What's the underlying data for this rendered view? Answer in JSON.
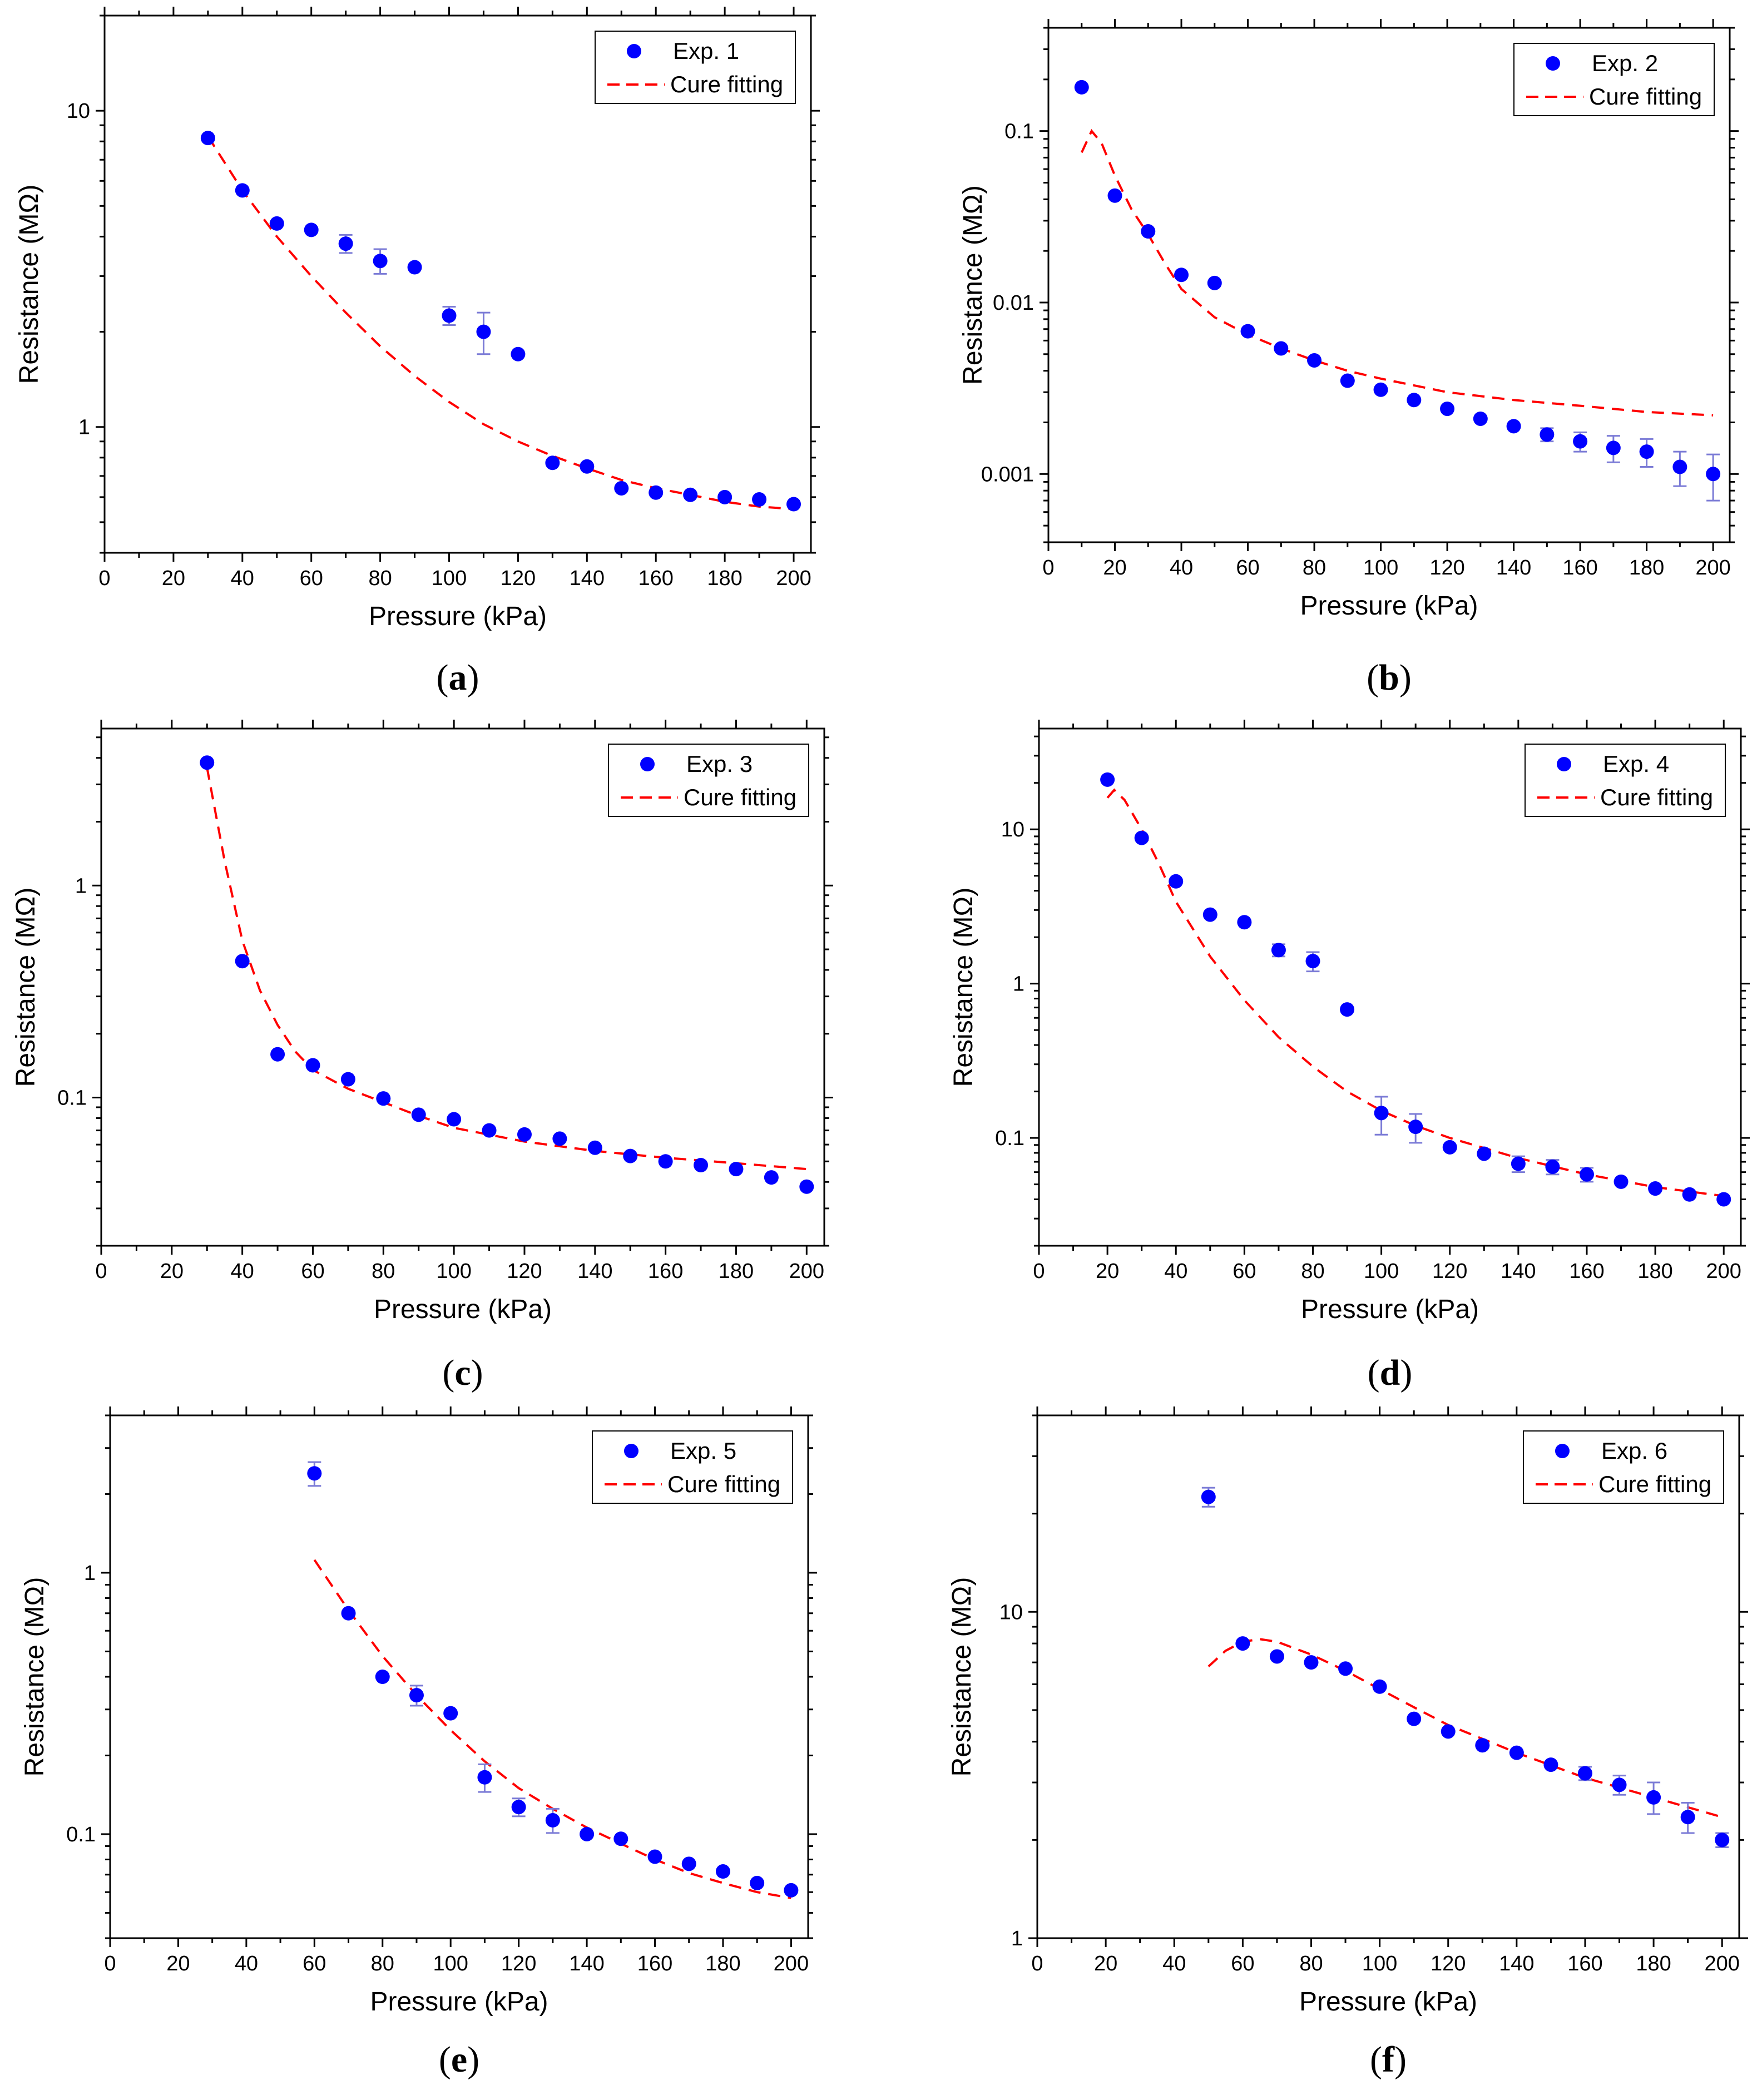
{
  "figure": {
    "panel_label_pattern": "(#)",
    "point_color": "#0000ff",
    "errorbar_color": "#7b7bd6",
    "fit_color": "#ff0000"
  },
  "chart_data": [
    {
      "id": "a",
      "panel_letter": "a",
      "type": "scatter",
      "xlabel": "Pressure (kPa)",
      "ylabel": "Resistance (MΩ)",
      "xlim": [
        0,
        205
      ],
      "xticks": [
        0,
        20,
        40,
        60,
        80,
        100,
        120,
        140,
        160,
        180,
        200
      ],
      "yscale": "log",
      "ylim": [
        0.4,
        20
      ],
      "yticks": [
        1,
        10
      ],
      "ytick_labels": [
        "1",
        "10"
      ],
      "legend": {
        "points": "Exp. 1",
        "fit": "Cure fitting",
        "position": "top-right"
      },
      "points": {
        "x": [
          30,
          40,
          50,
          60,
          70,
          80,
          90,
          100,
          110,
          120,
          130,
          140,
          150,
          160,
          170,
          180,
          190,
          200
        ],
        "y": [
          8.2,
          5.6,
          4.4,
          4.2,
          3.8,
          3.35,
          3.2,
          2.25,
          2.0,
          1.7,
          0.77,
          0.75,
          0.64,
          0.62,
          0.61,
          0.6,
          0.59,
          0.57
        ],
        "err": [
          0,
          0,
          0,
          0,
          0.25,
          0.3,
          0,
          0.15,
          0.3,
          0,
          0,
          0,
          0,
          0,
          0,
          0,
          0,
          0
        ]
      },
      "fit": {
        "x": [
          30,
          40,
          50,
          60,
          70,
          80,
          90,
          100,
          110,
          120,
          130,
          140,
          150,
          160,
          170,
          180,
          190,
          200
        ],
        "y": [
          8.3,
          5.6,
          4.0,
          3.0,
          2.3,
          1.8,
          1.45,
          1.2,
          1.02,
          0.9,
          0.81,
          0.74,
          0.68,
          0.64,
          0.61,
          0.58,
          0.56,
          0.55
        ]
      }
    },
    {
      "id": "b",
      "panel_letter": "b",
      "type": "scatter",
      "xlabel": "Pressure (kPa)",
      "ylabel": "Resistance (MΩ)",
      "xlim": [
        0,
        205
      ],
      "xticks": [
        0,
        20,
        40,
        60,
        80,
        100,
        120,
        140,
        160,
        180,
        200
      ],
      "yscale": "log",
      "ylim": [
        0.0004,
        0.4
      ],
      "yticks": [
        0.001,
        0.01,
        0.1
      ],
      "ytick_labels": [
        "0.001",
        "0.01",
        "0.1"
      ],
      "legend": {
        "points": "Exp. 2",
        "fit": "Cure fitting",
        "position": "top-right"
      },
      "points": {
        "x": [
          10,
          20,
          30,
          40,
          50,
          60,
          70,
          80,
          90,
          100,
          110,
          120,
          130,
          140,
          150,
          160,
          170,
          180,
          190,
          200
        ],
        "y": [
          0.18,
          0.042,
          0.026,
          0.0145,
          0.013,
          0.0068,
          0.0054,
          0.0046,
          0.0035,
          0.0031,
          0.0027,
          0.0024,
          0.0021,
          0.0019,
          0.0017,
          0.00155,
          0.00142,
          0.00135,
          0.0011,
          0.001
        ],
        "err": [
          0,
          0,
          0,
          0,
          0,
          0,
          0,
          0,
          0,
          0,
          0,
          0,
          0,
          0,
          0.00015,
          0.0002,
          0.00025,
          0.00025,
          0.00025,
          0.0003
        ]
      },
      "fit": {
        "x": [
          10,
          13,
          16,
          20,
          25,
          30,
          35,
          40,
          50,
          60,
          70,
          80,
          90,
          100,
          120,
          140,
          160,
          180,
          200
        ],
        "y": [
          0.075,
          0.1,
          0.085,
          0.055,
          0.035,
          0.025,
          0.017,
          0.012,
          0.0082,
          0.0065,
          0.0054,
          0.0046,
          0.004,
          0.0036,
          0.003,
          0.0027,
          0.0025,
          0.0023,
          0.0022
        ]
      }
    },
    {
      "id": "c",
      "panel_letter": "c",
      "type": "scatter",
      "xlabel": "Pressure (kPa)",
      "ylabel": "Resistance (MΩ)",
      "xlim": [
        0,
        205
      ],
      "xticks": [
        0,
        20,
        40,
        60,
        80,
        100,
        120,
        140,
        160,
        180,
        200
      ],
      "yscale": "log",
      "ylim": [
        0.02,
        5.5
      ],
      "yticks": [
        0.1,
        1
      ],
      "ytick_labels": [
        "0.1",
        "1"
      ],
      "legend": {
        "points": "Exp. 3",
        "fit": "Cure fitting",
        "position": "top-right"
      },
      "points": {
        "x": [
          30,
          40,
          50,
          60,
          70,
          80,
          90,
          100,
          110,
          120,
          130,
          140,
          150,
          160,
          170,
          180,
          190,
          200
        ],
        "y": [
          3.8,
          0.44,
          0.16,
          0.142,
          0.122,
          0.099,
          0.083,
          0.079,
          0.07,
          0.067,
          0.064,
          0.058,
          0.053,
          0.05,
          0.048,
          0.046,
          0.042,
          0.038
        ],
        "err": [
          0,
          0,
          0,
          0,
          0,
          0,
          0,
          0,
          0,
          0,
          0,
          0,
          0,
          0,
          0,
          0,
          0,
          0
        ]
      },
      "fit": {
        "x": [
          30,
          35,
          40,
          45,
          50,
          55,
          60,
          70,
          80,
          90,
          100,
          120,
          140,
          160,
          180,
          200
        ],
        "y": [
          3.6,
          1.3,
          0.55,
          0.32,
          0.22,
          0.165,
          0.135,
          0.11,
          0.095,
          0.082,
          0.072,
          0.062,
          0.056,
          0.052,
          0.049,
          0.046
        ]
      }
    },
    {
      "id": "d",
      "panel_letter": "d",
      "type": "scatter",
      "xlabel": "Pressure (kPa)",
      "ylabel": "Resistance (MΩ)",
      "xlim": [
        0,
        205
      ],
      "xticks": [
        0,
        20,
        40,
        60,
        80,
        100,
        120,
        140,
        160,
        180,
        200
      ],
      "yscale": "log",
      "ylim": [
        0.02,
        45
      ],
      "yticks": [
        0.1,
        1,
        10
      ],
      "ytick_labels": [
        "0.1",
        "1",
        "10"
      ],
      "legend": {
        "points": "Exp. 4",
        "fit": "Cure fitting",
        "position": "top-right"
      },
      "points": {
        "x": [
          20,
          30,
          40,
          50,
          60,
          70,
          80,
          90,
          100,
          110,
          120,
          130,
          140,
          150,
          160,
          170,
          180,
          190,
          200
        ],
        "y": [
          21,
          8.8,
          4.6,
          2.8,
          2.5,
          1.65,
          1.4,
          0.68,
          0.145,
          0.118,
          0.087,
          0.079,
          0.068,
          0.065,
          0.058,
          0.052,
          0.047,
          0.043,
          0.04
        ],
        "err": [
          0,
          0,
          0,
          0,
          0,
          0.15,
          0.2,
          0,
          0.04,
          0.025,
          0,
          0,
          0.008,
          0.007,
          0.006,
          0,
          0,
          0,
          0
        ]
      },
      "fit": {
        "x": [
          20,
          22,
          25,
          30,
          35,
          40,
          50,
          60,
          70,
          80,
          90,
          100,
          110,
          120,
          140,
          160,
          180,
          200
        ],
        "y": [
          16,
          18,
          15.5,
          10,
          6,
          3.4,
          1.5,
          0.78,
          0.45,
          0.29,
          0.2,
          0.15,
          0.12,
          0.1,
          0.074,
          0.058,
          0.048,
          0.042
        ]
      }
    },
    {
      "id": "e",
      "panel_letter": "e",
      "type": "scatter",
      "xlabel": "Pressure (kPa)",
      "ylabel": "Resistance (MΩ)",
      "xlim": [
        0,
        205
      ],
      "xticks": [
        0,
        20,
        40,
        60,
        80,
        100,
        120,
        140,
        160,
        180,
        200
      ],
      "yscale": "log",
      "ylim": [
        0.04,
        4
      ],
      "yticks": [
        0.1,
        1
      ],
      "ytick_labels": [
        "0.1",
        "1"
      ],
      "legend": {
        "points": "Exp. 5",
        "fit": "Cure fitting",
        "position": "top-right"
      },
      "points": {
        "x": [
          60,
          70,
          80,
          90,
          100,
          110,
          120,
          130,
          140,
          150,
          160,
          170,
          180,
          190,
          200
        ],
        "y": [
          2.4,
          0.7,
          0.4,
          0.34,
          0.29,
          0.165,
          0.127,
          0.113,
          0.1,
          0.096,
          0.082,
          0.077,
          0.072,
          0.065,
          0.061
        ],
        "err": [
          0.25,
          0,
          0,
          0.03,
          0,
          0.02,
          0.01,
          0.012,
          0,
          0,
          0,
          0,
          0,
          0,
          0
        ]
      },
      "fit": {
        "x": [
          60,
          70,
          80,
          90,
          100,
          110,
          120,
          130,
          140,
          150,
          160,
          170,
          180,
          190,
          200
        ],
        "y": [
          1.12,
          0.72,
          0.48,
          0.34,
          0.25,
          0.19,
          0.15,
          0.125,
          0.106,
          0.092,
          0.08,
          0.071,
          0.065,
          0.06,
          0.057
        ]
      }
    },
    {
      "id": "f",
      "panel_letter": "f",
      "type": "scatter",
      "xlabel": "Pressure (kPa)",
      "ylabel": "Resistance (MΩ)",
      "xlim": [
        0,
        205
      ],
      "xticks": [
        0,
        20,
        40,
        60,
        80,
        100,
        120,
        140,
        160,
        180,
        200
      ],
      "yscale": "log",
      "ylim": [
        1,
        40
      ],
      "yticks": [
        1,
        10
      ],
      "ytick_labels": [
        "1",
        "10"
      ],
      "legend": {
        "points": "Exp. 6",
        "fit": "Cure fitting",
        "position": "top-right"
      },
      "points": {
        "x": [
          50,
          60,
          70,
          80,
          90,
          100,
          110,
          120,
          130,
          140,
          150,
          160,
          170,
          180,
          190,
          200
        ],
        "y": [
          22.5,
          8.0,
          7.3,
          7.0,
          6.7,
          5.9,
          4.7,
          4.3,
          3.9,
          3.7,
          3.4,
          3.2,
          2.95,
          2.7,
          2.35,
          2.0
        ],
        "err": [
          1.5,
          0,
          0,
          0,
          0,
          0,
          0,
          0,
          0,
          0,
          0,
          0.15,
          0.2,
          0.3,
          0.25,
          0.1
        ]
      },
      "fit": {
        "x": [
          50,
          55,
          60,
          65,
          70,
          80,
          90,
          100,
          110,
          120,
          140,
          160,
          180,
          200
        ],
        "y": [
          6.8,
          7.6,
          8.1,
          8.25,
          8.1,
          7.4,
          6.6,
          5.8,
          5.1,
          4.5,
          3.7,
          3.1,
          2.7,
          2.35
        ]
      }
    }
  ]
}
